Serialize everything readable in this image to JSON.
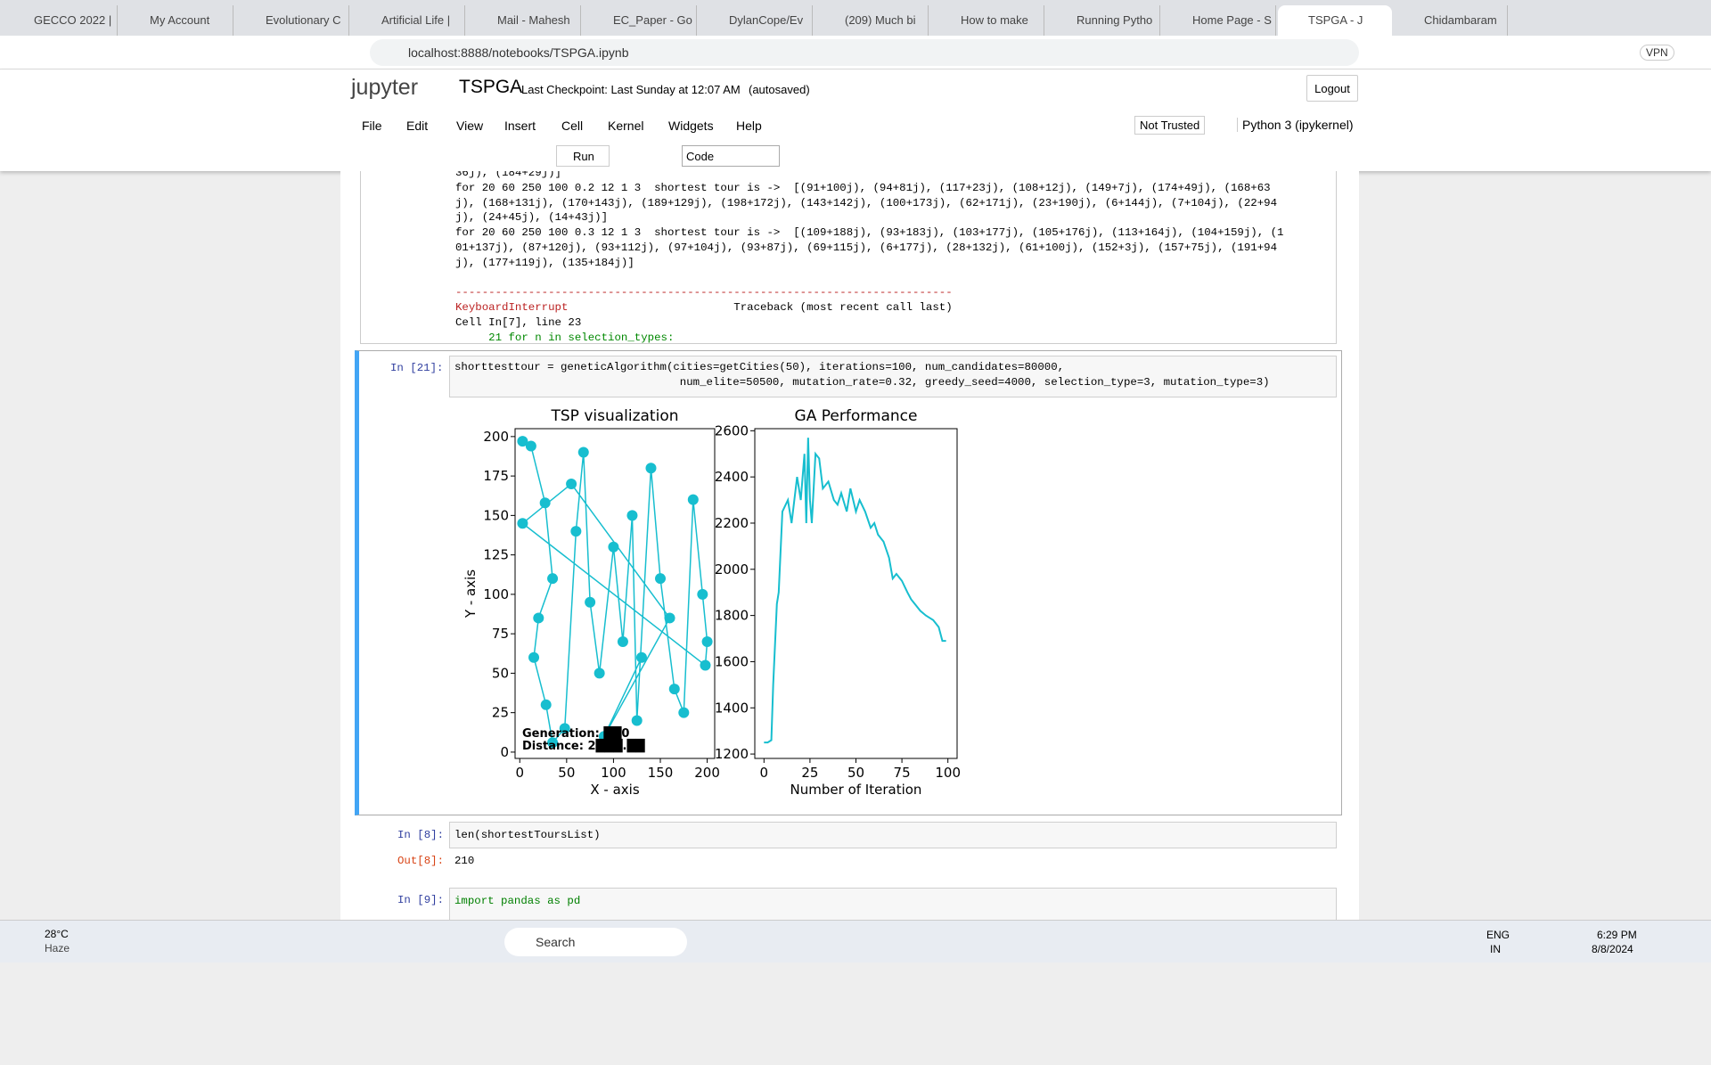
{
  "browser": {
    "tabs": [
      "GECCO 2022 |",
      "My Account",
      "Evolutionary C",
      "Artificial Life |",
      "Mail - Mahesh",
      "EC_Paper - Go",
      "DylanCope/Ev",
      "(209) Much bi",
      "How to make",
      "Running Pytho",
      "Home Page - S",
      "TSPGA - J",
      "Chidambaram"
    ],
    "address": "localhost:8888/notebooks/TSPGA.ipynb",
    "vpn": "VPN"
  },
  "header": {
    "logo": "jupyter",
    "title": "TSPGA",
    "checkpoint": "Last Checkpoint: Last Sunday at 12:07 AM",
    "autosaved": "(autosaved)",
    "logout": "Logout"
  },
  "menu": {
    "items": [
      "File",
      "Edit",
      "View",
      "Insert",
      "Cell",
      "Kernel",
      "Widgets",
      "Help"
    ],
    "trust": "Not Trusted",
    "kernel": "Python 3 (ipykernel)"
  },
  "toolbar": {
    "run": "Run",
    "cell_type": "Code"
  },
  "output_lines": [
    "36j), (184+29j)]",
    "for 20 60 250 100 0.2 12 1 3  shortest tour is ->  [(91+100j), (94+81j), (117+23j), (108+12j), (149+7j), (174+49j), (168+63",
    "j), (168+131j), (170+143j), (189+129j), (198+172j), (143+142j), (100+173j), (62+171j), (23+190j), (6+144j), (7+104j), (22+94",
    "j), (24+45j), (14+43j)]",
    "for 20 60 250 100 0.3 12 1 3  shortest tour is ->  [(109+188j), (93+183j), (103+177j), (105+176j), (113+164j), (104+159j), (1",
    "01+137j), (87+120j), (93+112j), (97+104j), (93+87j), (69+115j), (6+177j), (28+132j), (61+100j), (152+3j), (157+75j), (191+94",
    "j), (177+119j), (135+184j)]"
  ],
  "traceback": {
    "rule": "---------------------------------------------------------------------------",
    "error": "KeyboardInterrupt",
    "trace": "Traceback (most recent call last)",
    "cell": "Cell In[7], line 23",
    "line": "     21 for n in selection_types:"
  },
  "cell21": {
    "prompt": "In [21]:",
    "code": [
      "shorttesttour = geneticAlgorithm(cities=getCities(50), iterations=100, num_candidates=80000,",
      "                                  num_elite=50500, mutation_rate=0.32, greedy_seed=4000, selection_type=3, mutation_type=3)"
    ]
  },
  "plots": [
    {
      "type": "scatter",
      "title": "TSP visualization",
      "xlabel": "X - axis",
      "ylabel": "Y - axis",
      "color": "#17becf",
      "xlim": [
        -5,
        208
      ],
      "ylim": [
        -4,
        205
      ],
      "xticks": [
        0,
        50,
        100,
        150,
        200
      ],
      "yticks": [
        0,
        25,
        50,
        75,
        100,
        125,
        150,
        175,
        200
      ],
      "x": [
        3,
        12,
        27,
        35,
        20,
        15,
        28,
        35,
        48,
        60,
        68,
        75,
        85,
        100,
        110,
        120,
        125,
        140,
        150,
        165,
        175,
        185,
        195,
        200,
        198,
        3,
        55,
        160,
        90,
        130
      ],
      "y": [
        197,
        194,
        158,
        110,
        85,
        60,
        30,
        6,
        15,
        140,
        190,
        95,
        50,
        130,
        70,
        150,
        20,
        180,
        110,
        40,
        25,
        160,
        100,
        70,
        55,
        145,
        170,
        85,
        10,
        60
      ],
      "annotations": [
        "Generation: ██0",
        "Distance: 2███.██"
      ]
    },
    {
      "type": "line",
      "title": "GA Performance",
      "xlabel": "Number of Iteration",
      "color": "#17becf",
      "xlim": [
        -5,
        105
      ],
      "ylim": [
        1181,
        2609
      ],
      "xticks": [
        0,
        25,
        50,
        75,
        100
      ],
      "yticks": [
        1200,
        1400,
        1600,
        1800,
        2000,
        2200,
        2400,
        2600
      ],
      "x": [
        0,
        2,
        4,
        5,
        7,
        8,
        10,
        13,
        15,
        18,
        20,
        22,
        23,
        24,
        25,
        26,
        28,
        30,
        32,
        35,
        38,
        40,
        42,
        45,
        47,
        50,
        52,
        55,
        58,
        60,
        62,
        65,
        68,
        70,
        72,
        75,
        78,
        80,
        82,
        85,
        88,
        90,
        92,
        95,
        97,
        99
      ],
      "values": [
        1250,
        1250,
        1260,
        1500,
        1850,
        1900,
        2250,
        2300,
        2200,
        2400,
        2300,
        2500,
        2200,
        2570,
        2300,
        2200,
        2500,
        2480,
        2350,
        2380,
        2300,
        2280,
        2330,
        2250,
        2350,
        2250,
        2300,
        2250,
        2180,
        2200,
        2150,
        2120,
        2050,
        1960,
        1980,
        1950,
        1900,
        1870,
        1850,
        1820,
        1800,
        1790,
        1780,
        1750,
        1690,
        1690
      ]
    }
  ],
  "cell8": {
    "prompt": "In [8]:",
    "code": "len(shortestToursList)",
    "out_prompt": "Out[8]:",
    "out": "210"
  },
  "cell9": {
    "prompt": "In [9]:",
    "code": "import pandas as pd"
  },
  "taskbar": {
    "temp": "28°C",
    "weather": "Haze",
    "search": "Search",
    "lang": "ENG",
    "region": "IN",
    "time": "6:29 PM",
    "date": "8/8/2024"
  }
}
